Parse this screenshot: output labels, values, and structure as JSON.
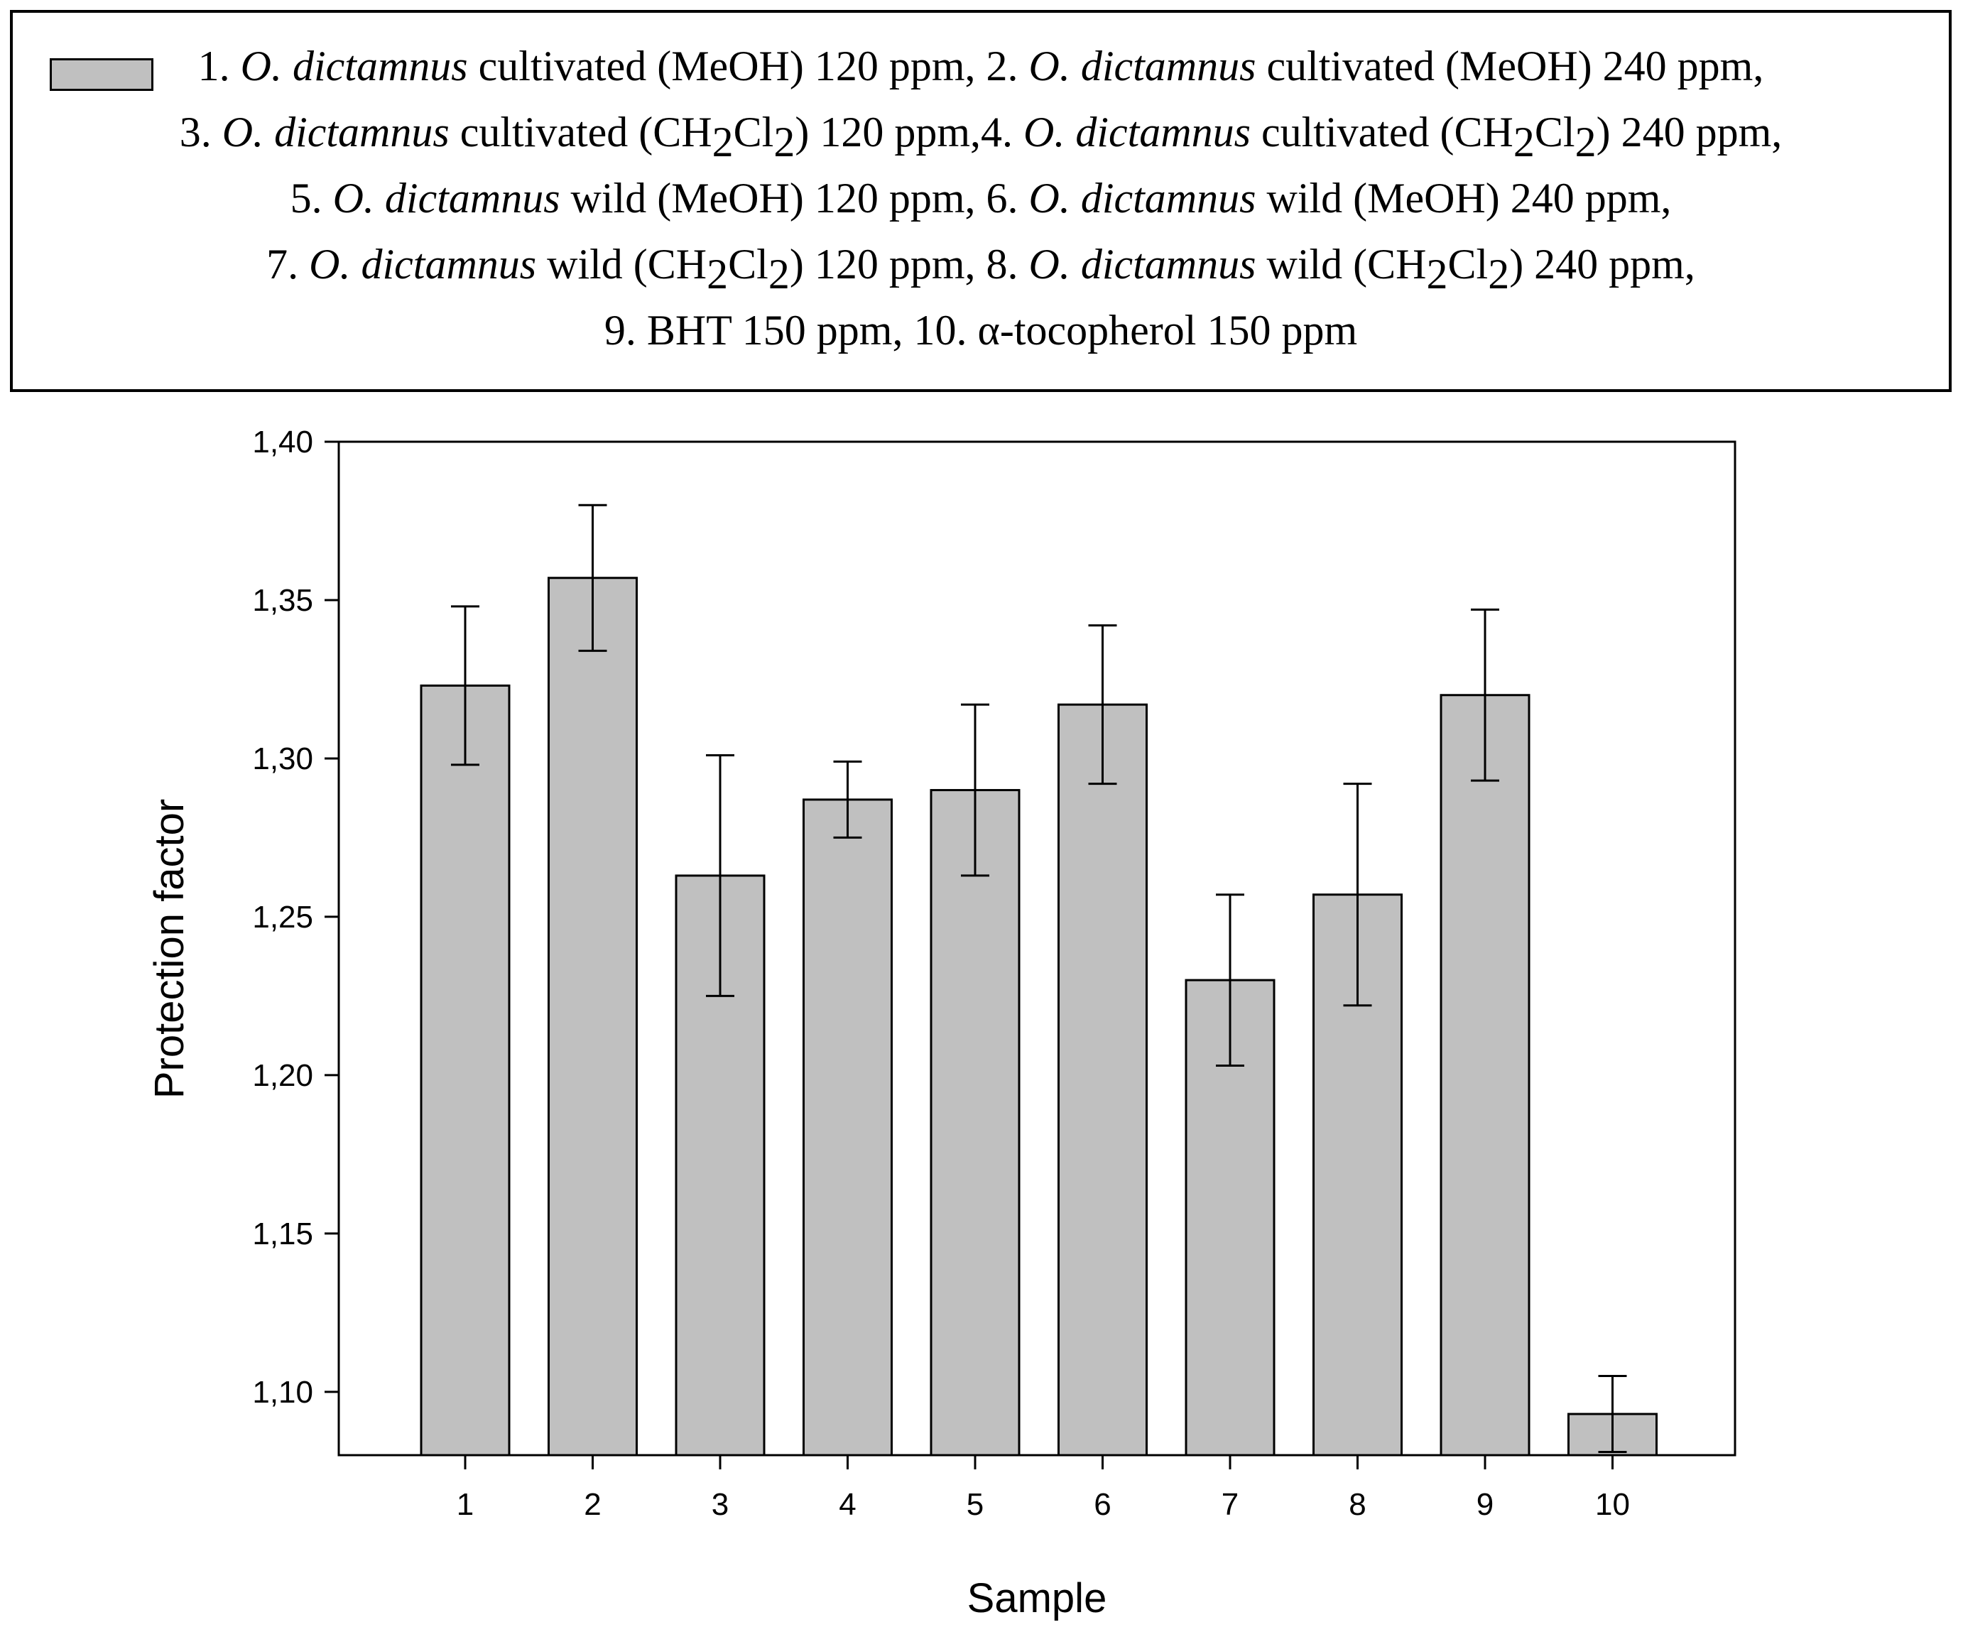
{
  "chart_data": {
    "type": "bar",
    "title": "",
    "xlabel": "Sample",
    "ylabel": "Protection factor",
    "categories": [
      "1",
      "2",
      "3",
      "4",
      "5",
      "6",
      "7",
      "8",
      "9",
      "10"
    ],
    "values": [
      1.323,
      1.357,
      1.263,
      1.287,
      1.29,
      1.317,
      1.23,
      1.257,
      1.32,
      1.093
    ],
    "errors": [
      0.025,
      0.023,
      0.038,
      0.012,
      0.027,
      0.025,
      0.027,
      0.035,
      0.027,
      0.012
    ],
    "ylim": [
      1.08,
      1.4
    ],
    "yticks": [
      1.1,
      1.15,
      1.2,
      1.25,
      1.3,
      1.35,
      1.4
    ],
    "ytick_labels": [
      "1,10",
      "1,15",
      "1,20",
      "1,25",
      "1,30",
      "1,35",
      "1,40"
    ],
    "grid": false,
    "legend_position": "top",
    "bar_color": "#c0c0c0"
  },
  "legend": {
    "lines": [
      [
        {
          "t": "1. "
        },
        {
          "t": "O. dictamnus",
          "i": true
        },
        {
          "t": " cultivated (MeOH) 120 ppm, 2. "
        },
        {
          "t": "O. dictamnus",
          "i": true
        },
        {
          "t": " cultivated (MeOH) 240 ppm,"
        }
      ],
      [
        {
          "t": "3. "
        },
        {
          "t": "O. dictamnus",
          "i": true
        },
        {
          "t": " cultivated (CH"
        },
        {
          "t": "2",
          "sub": true
        },
        {
          "t": "Cl"
        },
        {
          "t": "2",
          "sub": true
        },
        {
          "t": ") 120 ppm,4. "
        },
        {
          "t": "O. dictamnus",
          "i": true
        },
        {
          "t": " cultivated (CH"
        },
        {
          "t": "2",
          "sub": true
        },
        {
          "t": "Cl"
        },
        {
          "t": "2",
          "sub": true
        },
        {
          "t": ") 240 ppm,"
        }
      ],
      [
        {
          "t": "5. "
        },
        {
          "t": "O. dictamnus",
          "i": true
        },
        {
          "t": " wild (MeOH) 120 ppm, 6. "
        },
        {
          "t": "O. dictamnus",
          "i": true
        },
        {
          "t": " wild (MeOH) 240 ppm,"
        }
      ],
      [
        {
          "t": "7. "
        },
        {
          "t": "O. dictamnus",
          "i": true
        },
        {
          "t": " wild (CH"
        },
        {
          "t": "2",
          "sub": true
        },
        {
          "t": "Cl"
        },
        {
          "t": "2",
          "sub": true
        },
        {
          "t": ") 120  ppm, 8. "
        },
        {
          "t": "O. dictamnus",
          "i": true
        },
        {
          "t": " wild (CH"
        },
        {
          "t": "2",
          "sub": true
        },
        {
          "t": "Cl"
        },
        {
          "t": "2",
          "sub": true
        },
        {
          "t": ") 240  ppm,"
        }
      ],
      [
        {
          "t": "9. BHT 150 ppm, 10. α-tocopherol 150 ppm"
        }
      ]
    ]
  }
}
